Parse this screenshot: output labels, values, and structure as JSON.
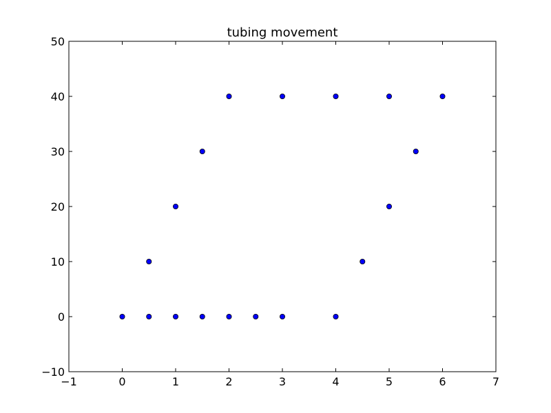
{
  "chart_data": {
    "type": "scatter",
    "title": "tubing movement",
    "xlabel": "",
    "ylabel": "",
    "xlim": [
      -1,
      7
    ],
    "ylim": [
      -10,
      50
    ],
    "xticks": [
      -1,
      0,
      1,
      2,
      3,
      4,
      5,
      6,
      7
    ],
    "yticks": [
      -10,
      0,
      10,
      20,
      30,
      40,
      50
    ],
    "grid": false,
    "marker_color": "#0000ff",
    "points": [
      {
        "x": 0,
        "y": 0
      },
      {
        "x": 0.5,
        "y": 0
      },
      {
        "x": 1,
        "y": 0
      },
      {
        "x": 1.5,
        "y": 0
      },
      {
        "x": 2,
        "y": 0
      },
      {
        "x": 2.5,
        "y": 0
      },
      {
        "x": 3,
        "y": 0
      },
      {
        "x": 4,
        "y": 0
      },
      {
        "x": 0.5,
        "y": 10
      },
      {
        "x": 1,
        "y": 20
      },
      {
        "x": 1.5,
        "y": 30
      },
      {
        "x": 2,
        "y": 40
      },
      {
        "x": 3,
        "y": 40
      },
      {
        "x": 4,
        "y": 40
      },
      {
        "x": 5,
        "y": 40
      },
      {
        "x": 6,
        "y": 40
      },
      {
        "x": 4.5,
        "y": 10
      },
      {
        "x": 5,
        "y": 20
      },
      {
        "x": 5.5,
        "y": 30
      }
    ]
  }
}
